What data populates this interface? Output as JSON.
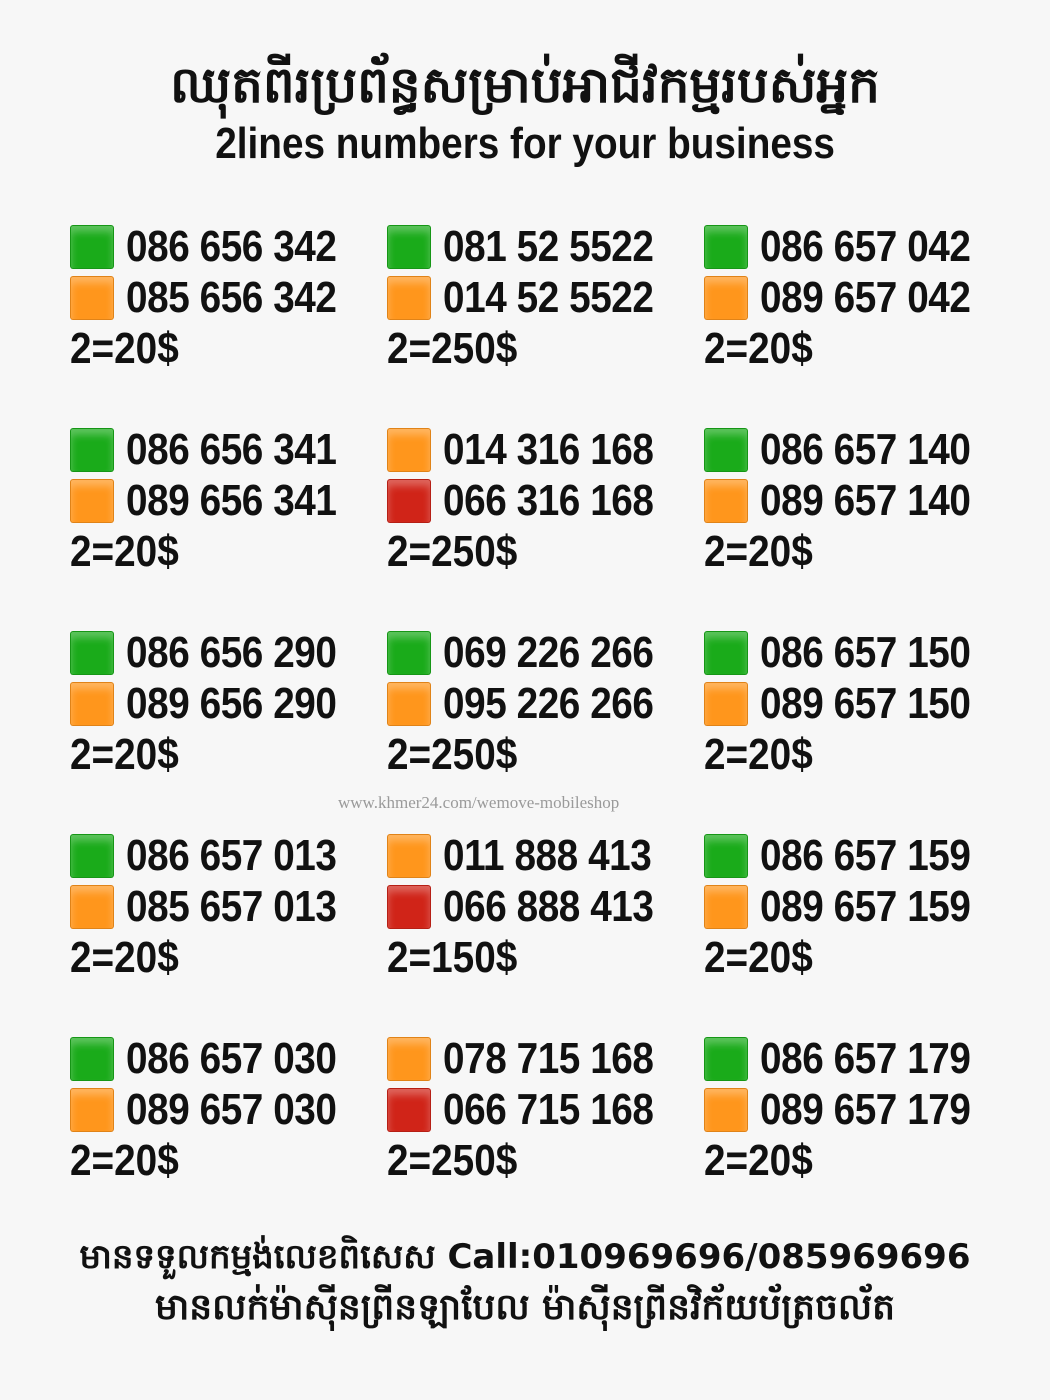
{
  "header": {
    "title_khmer": "ឈុតពីរប្រព័ន្ធសម្រាប់អាជីវកម្មរបស់អ្នក",
    "title_english": "2lines numbers for your business"
  },
  "colors": {
    "green": "#1aab1a",
    "orange": "#ff961c",
    "red": "#d02418",
    "background": "#f7f7f7"
  },
  "offers": [
    {
      "lines": [
        {
          "color": "green",
          "number": "086 656 342"
        },
        {
          "color": "orange",
          "number": "085 656 342"
        }
      ],
      "price": "2=20$"
    },
    {
      "lines": [
        {
          "color": "green",
          "number": "081 52 5522"
        },
        {
          "color": "orange",
          "number": "014 52 5522"
        }
      ],
      "price": "2=250$"
    },
    {
      "lines": [
        {
          "color": "green",
          "number": "086 657 042"
        },
        {
          "color": "orange",
          "number": "089 657 042"
        }
      ],
      "price": "2=20$"
    },
    {
      "lines": [
        {
          "color": "green",
          "number": "086 656 341"
        },
        {
          "color": "orange",
          "number": "089 656 341"
        }
      ],
      "price": "2=20$"
    },
    {
      "lines": [
        {
          "color": "orange",
          "number": "014 316 168"
        },
        {
          "color": "red",
          "number": "066 316 168"
        }
      ],
      "price": "2=250$"
    },
    {
      "lines": [
        {
          "color": "green",
          "number": "086 657 140"
        },
        {
          "color": "orange",
          "number": "089 657 140"
        }
      ],
      "price": "2=20$"
    },
    {
      "lines": [
        {
          "color": "green",
          "number": "086 656 290"
        },
        {
          "color": "orange",
          "number": "089 656 290"
        }
      ],
      "price": "2=20$"
    },
    {
      "lines": [
        {
          "color": "green",
          "number": "069 226 266"
        },
        {
          "color": "orange",
          "number": "095 226 266"
        }
      ],
      "price": "2=250$"
    },
    {
      "lines": [
        {
          "color": "green",
          "number": "086 657 150"
        },
        {
          "color": "orange",
          "number": "089 657 150"
        }
      ],
      "price": "2=20$"
    },
    {
      "lines": [
        {
          "color": "green",
          "number": "086 657 013"
        },
        {
          "color": "orange",
          "number": "085 657 013"
        }
      ],
      "price": "2=20$"
    },
    {
      "lines": [
        {
          "color": "orange",
          "number": "011 888 413"
        },
        {
          "color": "red",
          "number": "066 888 413"
        }
      ],
      "price": "2=150$"
    },
    {
      "lines": [
        {
          "color": "green",
          "number": "086 657 159"
        },
        {
          "color": "orange",
          "number": "089 657 159"
        }
      ],
      "price": "2=20$"
    },
    {
      "lines": [
        {
          "color": "green",
          "number": "086 657 030"
        },
        {
          "color": "orange",
          "number": "089 657 030"
        }
      ],
      "price": "2=20$"
    },
    {
      "lines": [
        {
          "color": "orange",
          "number": "078 715 168"
        },
        {
          "color": "red",
          "number": "066 715 168"
        }
      ],
      "price": "2=250$"
    },
    {
      "lines": [
        {
          "color": "green",
          "number": "086 657 179"
        },
        {
          "color": "orange",
          "number": "089 657 179"
        }
      ],
      "price": "2=20$"
    }
  ],
  "watermark": "www.khmer24.com/wemove-mobileshop",
  "footer": {
    "line1": "មានទទួលកម្មង់លេខពិសេស Call:010969696/085969696",
    "line2": "មានលក់ម៉ាស៊ីនព្រីនឡាបែល ម៉ាស៊ីនព្រីនវិក័យប័ត្រចល័ត"
  }
}
